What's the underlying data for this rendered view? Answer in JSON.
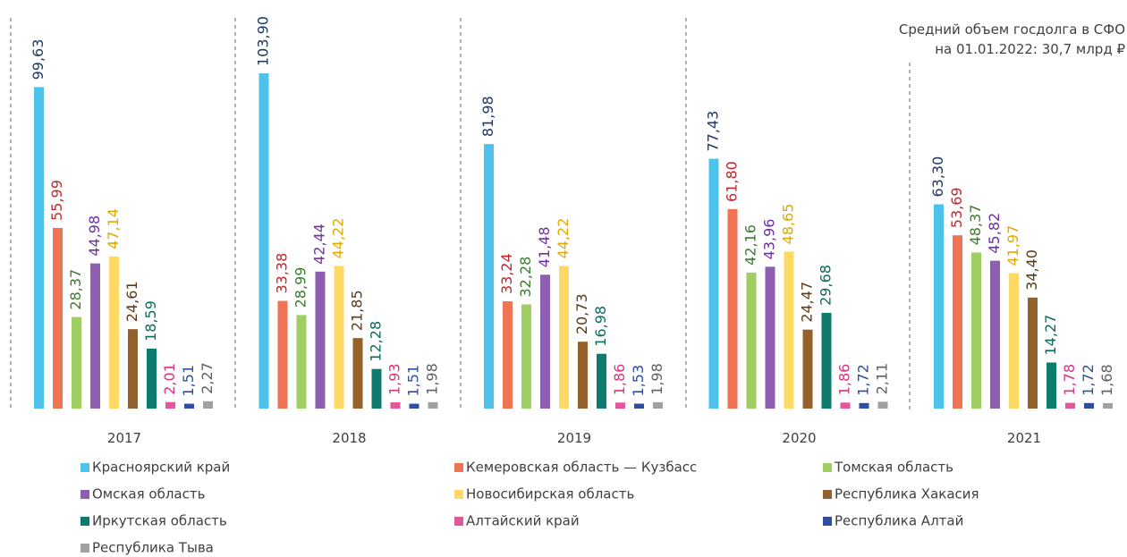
{
  "chart_data": {
    "type": "bar",
    "annotation": [
      "Средний объем госдолга в СФО",
      "на 01.01.2022: 30,7 млрд ₽"
    ],
    "categories": [
      "2017",
      "2018",
      "2019",
      "2020",
      "2021"
    ],
    "series": [
      {
        "name": "Красноярский край",
        "color": "#4dc3eb",
        "label_color": "#1f3864",
        "values": [
          99.63,
          103.9,
          81.98,
          77.43,
          63.3
        ],
        "value_labels": [
          "99,63",
          "103,90",
          "81,98",
          "77,43",
          "63,30"
        ]
      },
      {
        "name": "Кемеровская область — Кузбасс",
        "color": "#f07353",
        "label_color": "#c0272d",
        "values": [
          55.99,
          33.38,
          33.24,
          61.8,
          53.69
        ],
        "value_labels": [
          "55,99",
          "33,38",
          "33,24",
          "61,80",
          "53,69"
        ]
      },
      {
        "name": "Томская область",
        "color": "#9fce63",
        "label_color": "#3e7a2f",
        "values": [
          28.37,
          28.99,
          32.28,
          42.16,
          48.37
        ],
        "value_labels": [
          "28,37",
          "28,99",
          "32,28",
          "42,16",
          "48,37"
        ]
      },
      {
        "name": "Омская область",
        "color": "#8e5fb0",
        "label_color": "#7030a0",
        "values": [
          44.98,
          42.44,
          41.48,
          43.96,
          45.82
        ],
        "value_labels": [
          "44,98",
          "42,44",
          "41,48",
          "43,96",
          "45,82"
        ]
      },
      {
        "name": "Новосибирская область",
        "color": "#ffd966",
        "label_color": "#e0a800",
        "values": [
          47.14,
          44.22,
          44.22,
          48.65,
          41.97
        ],
        "value_labels": [
          "47,14",
          "44,22",
          "44,22",
          "48,65",
          "41,97"
        ]
      },
      {
        "name": "Республика Хакасия",
        "color": "#96602a",
        "label_color": "#5a3a1a",
        "values": [
          24.61,
          21.85,
          20.73,
          24.47,
          34.4
        ],
        "value_labels": [
          "24,61",
          "21,85",
          "20,73",
          "24,47",
          "34,40"
        ]
      },
      {
        "name": "Иркутская область",
        "color": "#0c7b6b",
        "label_color": "#0c6b5e",
        "values": [
          18.59,
          12.28,
          16.98,
          29.68,
          14.27
        ],
        "value_labels": [
          "18,59",
          "12,28",
          "16,98",
          "29,68",
          "14,27"
        ]
      },
      {
        "name": "Алтайский край",
        "color": "#e3569a",
        "label_color": "#d6357f",
        "values": [
          2.01,
          1.93,
          1.86,
          1.86,
          1.78
        ],
        "value_labels": [
          "2,01",
          "1,93",
          "1,86",
          "1,86",
          "1,78"
        ]
      },
      {
        "name": "Республика Алтай",
        "color": "#2f4ea0",
        "label_color": "#2f4ea0",
        "values": [
          1.51,
          1.51,
          1.53,
          1.72,
          1.72
        ],
        "value_labels": [
          "1,51",
          "1,51",
          "1,53",
          "1,72",
          "1,72"
        ]
      },
      {
        "name": "Республика Тыва",
        "color": "#a0a0a0",
        "label_color": "#606060",
        "values": [
          2.27,
          1.98,
          1.98,
          2.11,
          1.68
        ],
        "value_labels": [
          "2,27",
          "1,98",
          "1,98",
          "2,11",
          "1,68"
        ]
      }
    ]
  }
}
